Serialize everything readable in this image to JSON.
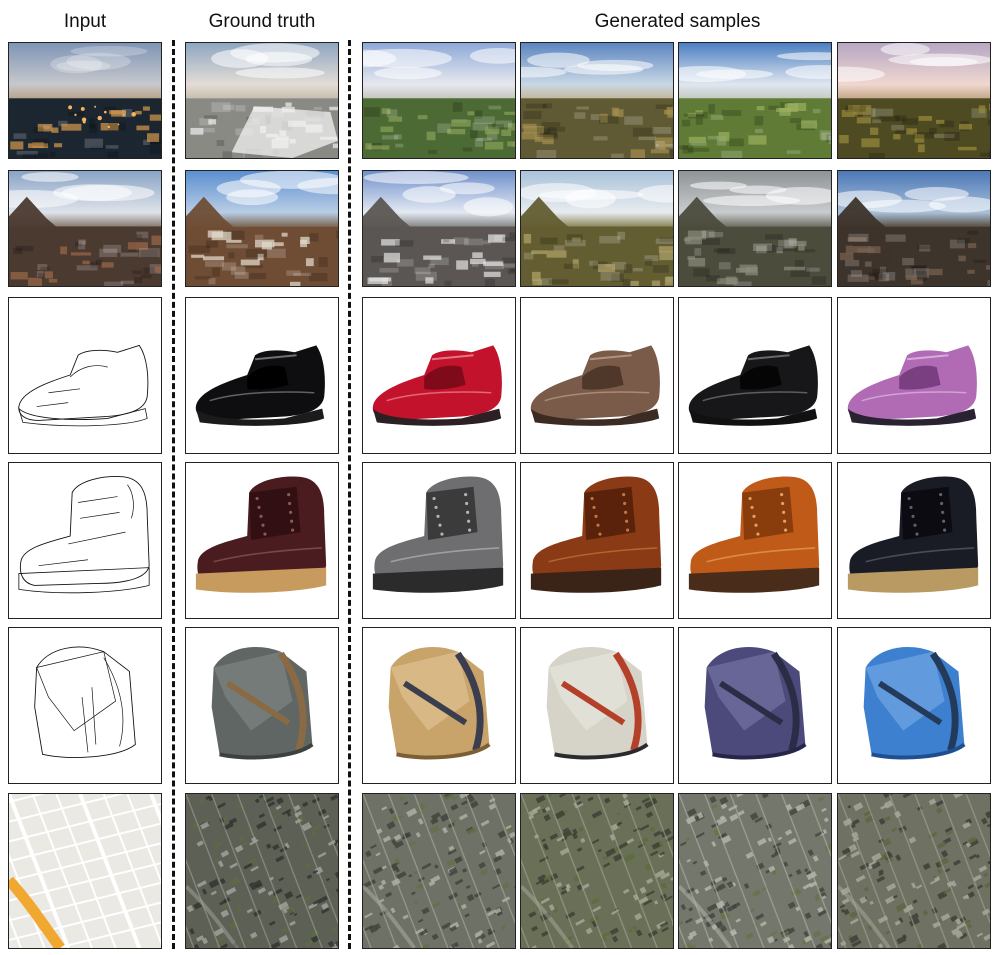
{
  "headers": {
    "input": "Input",
    "ground_truth": "Ground truth",
    "generated": "Generated samples"
  },
  "rows": [
    {
      "kind": "landscape",
      "input": {
        "sky_top": "#7f95b6",
        "sky_mid": "#c7c8cc",
        "horizon": "#b9a48b",
        "ground": "#1c2630",
        "accent": "#d59a4e",
        "night": true
      },
      "gt": {
        "sky_top": "#8fa6c1",
        "sky_mid": "#e3ddd6",
        "horizon": "#c9bdb0",
        "ground": "#8a8a85",
        "accent": "#efefef",
        "snow": true
      },
      "samples": [
        {
          "sky_top": "#8fa9d8",
          "sky_mid": "#e6e8ee",
          "horizon": "#c6c6c0",
          "ground": "#4c6a34",
          "accent": "#8aa15a"
        },
        {
          "sky_top": "#5c86c0",
          "sky_mid": "#c9d7e5",
          "horizon": "#c4b89f",
          "ground": "#5f5a33",
          "accent": "#a48f4e"
        },
        {
          "sky_top": "#4b7fc1",
          "sky_mid": "#dfe6f0",
          "horizon": "#c5cbc3",
          "ground": "#5f7b35",
          "accent": "#9bb061"
        },
        {
          "sky_top": "#b6a7c4",
          "sky_mid": "#f0d7cf",
          "horizon": "#c4a98a",
          "ground": "#4e4a22",
          "accent": "#9a8a3c"
        }
      ]
    },
    {
      "kind": "landscape",
      "input": {
        "sky_top": "#8aa4c6",
        "sky_mid": "#dfe3ea",
        "horizon": "#8a7e74",
        "ground": "#4b3a30",
        "accent": "#9c6a48"
      },
      "gt": {
        "sky_top": "#5b8fd0",
        "sky_mid": "#b9cde5",
        "horizon": "#7c6a58",
        "ground": "#6f4d35",
        "accent": "#e5ded2"
      },
      "samples": [
        {
          "sky_top": "#6f90cb",
          "sky_mid": "#e3e9f2",
          "horizon": "#8a8a8c",
          "ground": "#5b5653",
          "accent": "#e6e6e6"
        },
        {
          "sky_top": "#a9c2d9",
          "sky_mid": "#e8ecef",
          "horizon": "#8f8b5e",
          "ground": "#635d32",
          "accent": "#b2a56b"
        },
        {
          "sky_top": "#8e9497",
          "sky_mid": "#c9ccce",
          "horizon": "#707066",
          "ground": "#4b4c3c",
          "accent": "#8c8c7c"
        },
        {
          "sky_top": "#4c78b6",
          "sky_mid": "#a9c0da",
          "horizon": "#5d5245",
          "ground": "#3d342b",
          "accent": "#7a6350"
        }
      ]
    },
    {
      "kind": "shoe",
      "gt": {
        "color": "#0e0e10",
        "shade": "#000000",
        "sole": "#1b1b1b",
        "hi": "#9a9a9a"
      },
      "samples": [
        {
          "color": "#c3122c",
          "shade": "#7e0a1a",
          "sole": "#2c2024",
          "hi": "#f4a0a8"
        },
        {
          "color": "#7a5a48",
          "shade": "#4f3729",
          "sole": "#3b2b22",
          "hi": "#c7aa98"
        },
        {
          "color": "#171719",
          "shade": "#050505",
          "sole": "#111111",
          "hi": "#8c8c8c"
        },
        {
          "color": "#b06bb4",
          "shade": "#7a3f80",
          "sole": "#2a2230",
          "hi": "#e8c6ea"
        }
      ]
    },
    {
      "kind": "boot",
      "gt": {
        "color": "#4a1c1f",
        "shade": "#2a0d10",
        "sole": "#c79a5e",
        "hi": "#8b5a55"
      },
      "samples": [
        {
          "color": "#6e6e70",
          "shade": "#2e2e30",
          "sole": "#2b2b2b",
          "hi": "#b4b4b4"
        },
        {
          "color": "#8a3a14",
          "shade": "#4e1d08",
          "sole": "#3a2418",
          "hi": "#c2773f"
        },
        {
          "color": "#c05a18",
          "shade": "#7a340a",
          "sole": "#4a2c1a",
          "hi": "#e6a060"
        },
        {
          "color": "#1a1c25",
          "shade": "#08080c",
          "sole": "#b89a62",
          "hi": "#5c6070"
        }
      ]
    },
    {
      "kind": "bag",
      "gt": {
        "color": "#5f6663",
        "shade": "#3c4240",
        "strap": "#8a6a45",
        "hi": "#8d9592"
      },
      "samples": [
        {
          "color": "#c9a46a",
          "shade": "#7d5f34",
          "strap": "#3a3e4e",
          "hi": "#ead2a6"
        },
        {
          "color": "#d6d3c8",
          "shade": "#2b2b2e",
          "strap": "#b5402a",
          "hi": "#f0efe8"
        },
        {
          "color": "#4b4a7a",
          "shade": "#26264a",
          "strap": "#2c2c46",
          "hi": "#8a8ab8"
        },
        {
          "color": "#3d80d0",
          "shade": "#1f4f90",
          "strap": "#243a5a",
          "hi": "#8fbcef"
        }
      ]
    },
    {
      "kind": "map",
      "input": {
        "bg": "#ebe9e4",
        "road": "#ffffff",
        "highway": "#f0a830"
      },
      "gt": {
        "base": "#5c6055",
        "dark": "#2f3330",
        "light": "#a3a69e",
        "green": "#5d6a45"
      },
      "samples": [
        {
          "base": "#6e7266",
          "dark": "#3d413b",
          "light": "#b0b3a8",
          "green": "#637046"
        },
        {
          "base": "#6a7058",
          "dark": "#3a3f33",
          "light": "#a6ab99",
          "green": "#5a6b3c"
        },
        {
          "base": "#74786c",
          "dark": "#40443d",
          "light": "#b6b8ad",
          "green": "#667348"
        },
        {
          "base": "#6f7163",
          "dark": "#3b3d35",
          "light": "#a9ab9e",
          "green": "#5d6840"
        }
      ]
    }
  ]
}
